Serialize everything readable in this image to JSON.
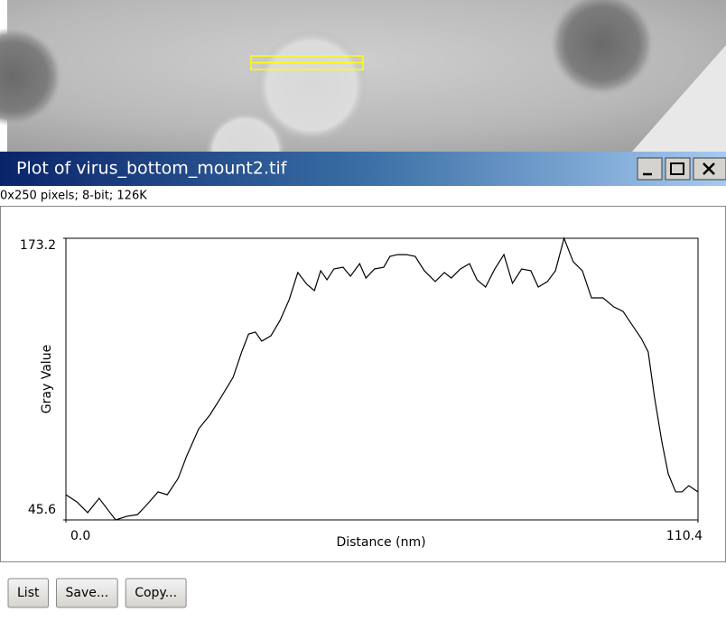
{
  "window": {
    "title": "Plot of virus_bottom_mount2.tif",
    "info": "0x250 pixels; 8-bit; 126K"
  },
  "chart_data": {
    "type": "line",
    "x_label": "Distance (nm)",
    "y_label": "Gray Value",
    "xlim": [
      0,
      110.4
    ],
    "ylim": [
      45.6,
      173.2
    ],
    "xticks": [
      {
        "value": 0,
        "label": "0.0"
      },
      110.4
    ],
    "yticks": [
      45.6,
      173.2
    ],
    "color": "#000000",
    "x": [
      0.0,
      1.9,
      3.8,
      5.8,
      7.7,
      8.7,
      10.6,
      12.5,
      14.0,
      16.1,
      17.7,
      19.6,
      21.1,
      23.2,
      25.1,
      27.1,
      29.2,
      30.7,
      31.9,
      33.1,
      34.2,
      35.8,
      37.4,
      39.0,
      40.5,
      42.1,
      43.4,
      44.5,
      45.6,
      46.8,
      48.4,
      49.7,
      51.3,
      52.4,
      53.9,
      55.5,
      56.6,
      57.9,
      59.5,
      61.0,
      62.6,
      64.5,
      66.1,
      67.3,
      68.9,
      70.5,
      71.8,
      73.3,
      74.9,
      76.5,
      78.0,
      79.6,
      81.2,
      82.5,
      84.1,
      85.5,
      87.0,
      88.6,
      90.2,
      91.8,
      93.8,
      95.7,
      97.3,
      98.9,
      100.5,
      101.7,
      102.8,
      104.1,
      105.2,
      106.5,
      107.6,
      108.8,
      110.4
    ],
    "values": [
      57.0,
      53.8,
      48.9,
      55.4,
      48.9,
      45.6,
      47.2,
      48.0,
      52.1,
      58.3,
      57.0,
      64.4,
      74.6,
      86.9,
      93.0,
      101.2,
      110.2,
      121.7,
      129.8,
      130.7,
      126.6,
      129.0,
      136.0,
      145.4,
      157.7,
      152.3,
      149.5,
      158.5,
      154.4,
      159.3,
      160.1,
      156.0,
      161.7,
      155.2,
      159.3,
      160.1,
      165.0,
      165.8,
      165.8,
      165.0,
      158.5,
      153.6,
      157.7,
      155.2,
      159.3,
      161.7,
      154.4,
      151.1,
      159.3,
      165.8,
      152.8,
      159.3,
      158.5,
      151.1,
      153.6,
      158.5,
      173.2,
      162.6,
      158.5,
      146.2,
      146.2,
      142.1,
      140.1,
      133.9,
      127.8,
      121.7,
      101.2,
      80.8,
      66.5,
      58.3,
      58.3,
      61.1,
      58.3
    ]
  },
  "buttons": [
    "List",
    "Save...",
    "Copy..."
  ]
}
